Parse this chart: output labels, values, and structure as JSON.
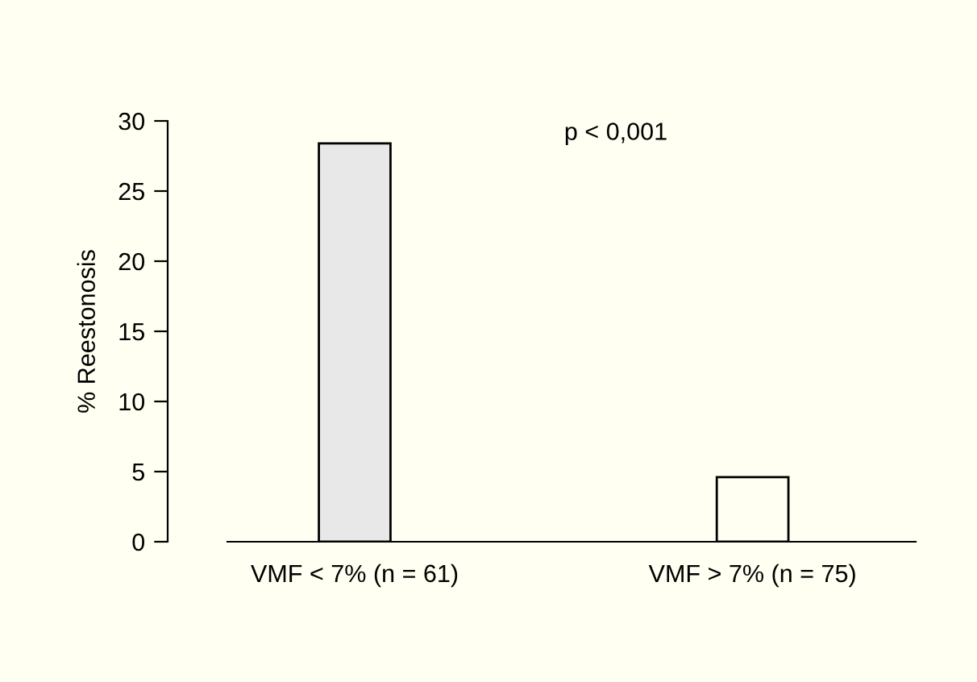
{
  "chart_data": {
    "type": "bar",
    "ylabel": "% Reestonosis",
    "categories": [
      "VMF < 7% (n = 61)",
      "VMF > 7% (n = 75)"
    ],
    "values": [
      28.4,
      4.6
    ],
    "colors": [
      "#e8e8e8",
      "#fffff2"
    ],
    "ylim": [
      0,
      30
    ],
    "yticks": [
      0,
      5,
      10,
      15,
      20,
      25,
      30
    ],
    "grid": false,
    "annotations": [
      "p < 0,001"
    ]
  }
}
